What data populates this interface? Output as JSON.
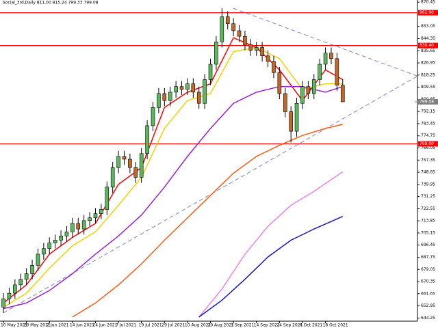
{
  "chart_data": {
    "type": "candlestick",
    "title": "Social_3rd,Daily  811.00 815.24 799.33 799.08",
    "categories": [
      "10 May 2021",
      null,
      null,
      null,
      "20 May 2021",
      null,
      null,
      null,
      "2 Jun 2021",
      null,
      null,
      null,
      "14 Jun 2021",
      null,
      null,
      null,
      "24 Jun 2021",
      null,
      null,
      null,
      "7 Jul 2021",
      null,
      null,
      null,
      "19 Jul 2021",
      null,
      null,
      null,
      "29 Jul 2021",
      null,
      null,
      null,
      "10 Aug 2021",
      null,
      null,
      null,
      "20 Aug 2021",
      null,
      null,
      null,
      "1 Sep 2021",
      null,
      null,
      null,
      "14 Sep 2021",
      null,
      null,
      null,
      "24 Sep 2021",
      null,
      null,
      null,
      "6 Oct 2021",
      null,
      null,
      null,
      "18 Oct 2021",
      null,
      null,
      null
    ],
    "open": [
      652,
      658,
      662,
      668,
      672,
      676,
      682,
      690,
      694,
      698,
      700,
      703,
      706,
      712,
      708,
      714,
      716,
      719,
      722,
      738,
      752,
      760,
      758,
      752,
      745,
      762,
      782,
      795,
      805,
      800,
      806,
      810,
      808,
      812,
      806,
      798,
      815,
      826,
      842,
      860,
      855,
      850,
      846,
      840,
      836,
      838,
      832,
      828,
      820,
      805,
      792,
      778,
      798,
      810,
      805,
      815,
      826,
      834,
      830,
      811
    ],
    "high": [
      662,
      666,
      672,
      676,
      680,
      686,
      694,
      698,
      702,
      704,
      707,
      710,
      716,
      716,
      718,
      720,
      723,
      726,
      742,
      756,
      764,
      764,
      762,
      756,
      766,
      786,
      799,
      809,
      809,
      810,
      814,
      814,
      816,
      816,
      810,
      819,
      830,
      846,
      866,
      864,
      859,
      854,
      850,
      844,
      842,
      842,
      836,
      832,
      824,
      809,
      796,
      802,
      814,
      814,
      819,
      830,
      838,
      838,
      834,
      815.24
    ],
    "low": [
      648,
      654,
      658,
      664,
      668,
      672,
      678,
      686,
      690,
      694,
      696,
      699,
      702,
      704,
      704,
      710,
      712,
      715,
      718,
      734,
      748,
      754,
      748,
      741,
      741,
      758,
      778,
      791,
      796,
      796,
      802,
      804,
      804,
      802,
      794,
      794,
      811,
      822,
      838,
      851,
      846,
      842,
      836,
      832,
      832,
      828,
      824,
      816,
      801,
      788,
      770,
      774,
      794,
      801,
      801,
      811,
      822,
      826,
      807,
      799.33
    ],
    "close": [
      658,
      662,
      668,
      672,
      676,
      682,
      690,
      694,
      698,
      700,
      703,
      706,
      712,
      708,
      714,
      716,
      719,
      722,
      738,
      752,
      760,
      758,
      752,
      745,
      762,
      782,
      795,
      805,
      800,
      806,
      810,
      808,
      812,
      806,
      798,
      815,
      826,
      842,
      860,
      855,
      850,
      846,
      840,
      836,
      838,
      832,
      828,
      820,
      805,
      792,
      778,
      798,
      810,
      805,
      815,
      826,
      834,
      830,
      811,
      799.08
    ],
    "up_color": "#5cb85c",
    "down_color": "#c0692b",
    "xlim": [
      -0.6,
      72
    ],
    "ylim": [
      642,
      872
    ],
    "yticks": [
      870.45,
      861.75,
      853.05,
      844.35,
      835.65,
      826.95,
      818.25,
      809.55,
      800.85,
      792.15,
      783.45,
      774.75,
      766.05,
      757.35,
      748.65,
      739.95,
      731.25,
      722.55,
      713.85,
      705.15,
      696.45,
      687.75,
      679.05,
      670.35,
      661.65,
      652.95,
      644.25
    ],
    "indicators": [
      {
        "color": "#ff0000",
        "x": [
          0,
          4,
          8,
          12,
          16,
          20,
          24,
          28,
          32,
          36,
          40,
          44,
          48,
          52,
          56,
          59
        ],
        "values": [
          655,
          668,
          690,
          702,
          712,
          740,
          752,
          795,
          806,
          812,
          845,
          838,
          822,
          800,
          822,
          815
        ]
      },
      {
        "color": "#f5d000",
        "x": [
          0,
          4,
          8,
          12,
          16,
          20,
          24,
          28,
          32,
          36,
          40,
          44,
          48,
          52,
          56,
          59
        ],
        "values": [
          652,
          662,
          680,
          696,
          706,
          725,
          745,
          780,
          800,
          805,
          835,
          838,
          830,
          808,
          812,
          812
        ]
      },
      {
        "color": "#9b1fd6",
        "x": [
          0,
          4,
          8,
          12,
          16,
          20,
          24,
          28,
          32,
          36,
          40,
          44,
          48,
          52,
          56,
          59
        ],
        "values": [
          651,
          655,
          664,
          676,
          690,
          703,
          718,
          738,
          760,
          780,
          798,
          806,
          810,
          810,
          806,
          810
        ]
      },
      {
        "color": "#ff5a14",
        "x": [
          12,
          16,
          20,
          24,
          28,
          32,
          36,
          40,
          44,
          48,
          52,
          56,
          59
        ],
        "values": [
          645,
          655,
          668,
          683,
          700,
          716,
          732,
          748,
          760,
          768,
          775,
          780,
          783
        ]
      },
      {
        "color": "#ee82ee",
        "x": [
          34,
          38,
          42,
          46,
          50,
          54,
          59
        ],
        "values": [
          645,
          665,
          690,
          710,
          725,
          735,
          749
        ]
      },
      {
        "color": "#1414c8",
        "x": [
          34,
          38,
          42,
          46,
          50,
          54,
          59
        ],
        "values": [
          645,
          657,
          672,
          688,
          700,
          708,
          717
        ]
      }
    ],
    "levels": [
      {
        "value": 862.9,
        "label": "862.90",
        "color": "#ff0000"
      },
      {
        "value": 839.4,
        "label": "839.40",
        "color": "#ff0000"
      },
      {
        "value": 769,
        "label": "769.00",
        "color": "#ff0000"
      }
    ],
    "last_price": {
      "value": 799.08,
      "label": "799.08"
    },
    "trendlines": [
      {
        "color": "#8080d0",
        "x": [
          0,
          72
        ],
        "values": [
          648,
          817.5
        ]
      },
      {
        "color": "#8080d0",
        "x": [
          40,
          72
        ],
        "values": [
          866,
          817.5
        ]
      }
    ]
  }
}
